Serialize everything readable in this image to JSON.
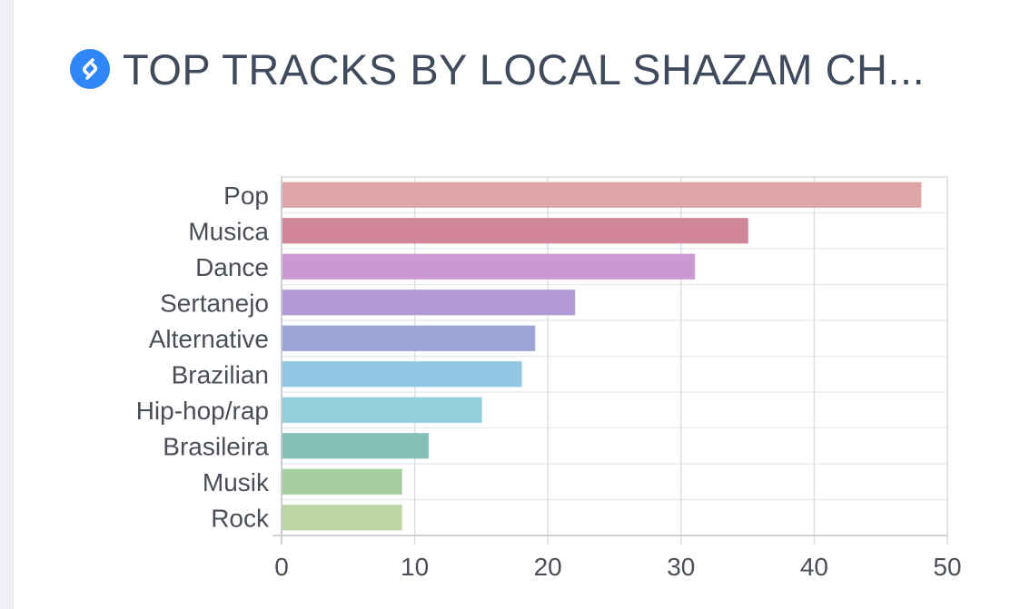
{
  "header": {
    "title": "TOP TRACKS BY LOCAL SHAZAM CH...",
    "icon": "shazam-logo-icon",
    "icon_color": "#2f86f6"
  },
  "chart_data": {
    "type": "bar",
    "orientation": "horizontal",
    "categories": [
      "Pop",
      "Musica",
      "Dance",
      "Sertanejo",
      "Alternative",
      "Brazilian",
      "Hip-hop/rap",
      "Brasileira",
      "Musik",
      "Rock"
    ],
    "values": [
      48,
      35,
      31,
      22,
      19,
      18,
      15,
      11,
      9,
      9
    ],
    "colors": [
      "#f0b3b3",
      "#e291a6",
      "#dfa3e6",
      "#c2a6e6",
      "#aab1ea",
      "#9ed8f7",
      "#9fe0ee",
      "#91d0c8",
      "#b2e0ac",
      "#cbe9b1"
    ],
    "xlim": [
      0,
      50
    ],
    "xticks": [
      "0",
      "10",
      "20",
      "30",
      "40",
      "50"
    ],
    "title": "TOP TRACKS BY LOCAL SHAZAM CH...",
    "xlabel": "",
    "ylabel": "",
    "grid": true,
    "legend": "none"
  }
}
